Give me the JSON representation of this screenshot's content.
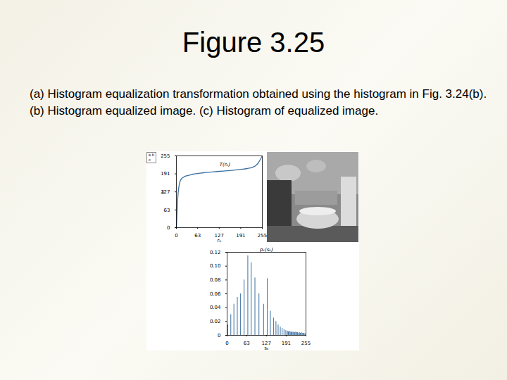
{
  "slide": {
    "title": "Figure 3.25",
    "caption": "(a) Histogram equalization transformation obtained using the histogram in Fig. 3.24(b). (b) Histogram equalized image. (c) Histogram of equalized image.",
    "panel_labels": [
      "a",
      "b",
      "c"
    ]
  },
  "chart_data": [
    {
      "type": "line",
      "panel": "a",
      "annotation": "T(rₖ)",
      "x_label": "rₖ",
      "y_label": "sₖ",
      "x": [
        0,
        2,
        5,
        8,
        12,
        16,
        22,
        30,
        40,
        50,
        63,
        80,
        100,
        127,
        150,
        170,
        191,
        210,
        225,
        235,
        243,
        249,
        255
      ],
      "values": [
        0,
        60,
        120,
        150,
        168,
        175,
        180,
        184,
        187,
        190,
        192,
        195,
        197,
        200,
        202,
        204,
        207,
        210,
        214,
        220,
        230,
        242,
        255
      ],
      "color": "#3a6fa0",
      "xlim": [
        0,
        255
      ],
      "xticks": [
        0,
        63,
        127,
        191,
        255
      ],
      "ylim": [
        0,
        255
      ],
      "yticks": [
        0,
        63,
        127,
        191,
        255
      ]
    },
    {
      "type": "stem",
      "panel": "c",
      "x_label": "sₖ",
      "y_label": "pₛ(sₖ)",
      "x": [
        2,
        12,
        22,
        33,
        43,
        55,
        67,
        78,
        90,
        103,
        118,
        130,
        140,
        150,
        158,
        165,
        172,
        178,
        184,
        190,
        195,
        198,
        201,
        204,
        207,
        210,
        213,
        216,
        219,
        222,
        225,
        228,
        231,
        234,
        237,
        240,
        243,
        246,
        249,
        252
      ],
      "values": [
        0.015,
        0.03,
        0.045,
        0.055,
        0.06,
        0.08,
        0.115,
        0.105,
        0.083,
        0.06,
        0.045,
        0.082,
        0.035,
        0.025,
        0.02,
        0.015,
        0.012,
        0.01,
        0.008,
        0.007,
        0.006,
        0.005,
        0.006,
        0.005,
        0.005,
        0.004,
        0.005,
        0.004,
        0.004,
        0.005,
        0.004,
        0.004,
        0.003,
        0.004,
        0.003,
        0.004,
        0.003,
        0.003,
        0.003,
        0.002
      ],
      "color": "#3a6fa0",
      "xlim": [
        0,
        255
      ],
      "xticks": [
        0,
        63,
        127,
        191,
        255
      ],
      "ylim": [
        0,
        0.12
      ],
      "yticks": [
        0,
        0.02,
        0.04,
        0.06,
        0.08,
        {
          "value": 0.1,
          "label": "0.10"
        },
        0.12
      ]
    }
  ]
}
